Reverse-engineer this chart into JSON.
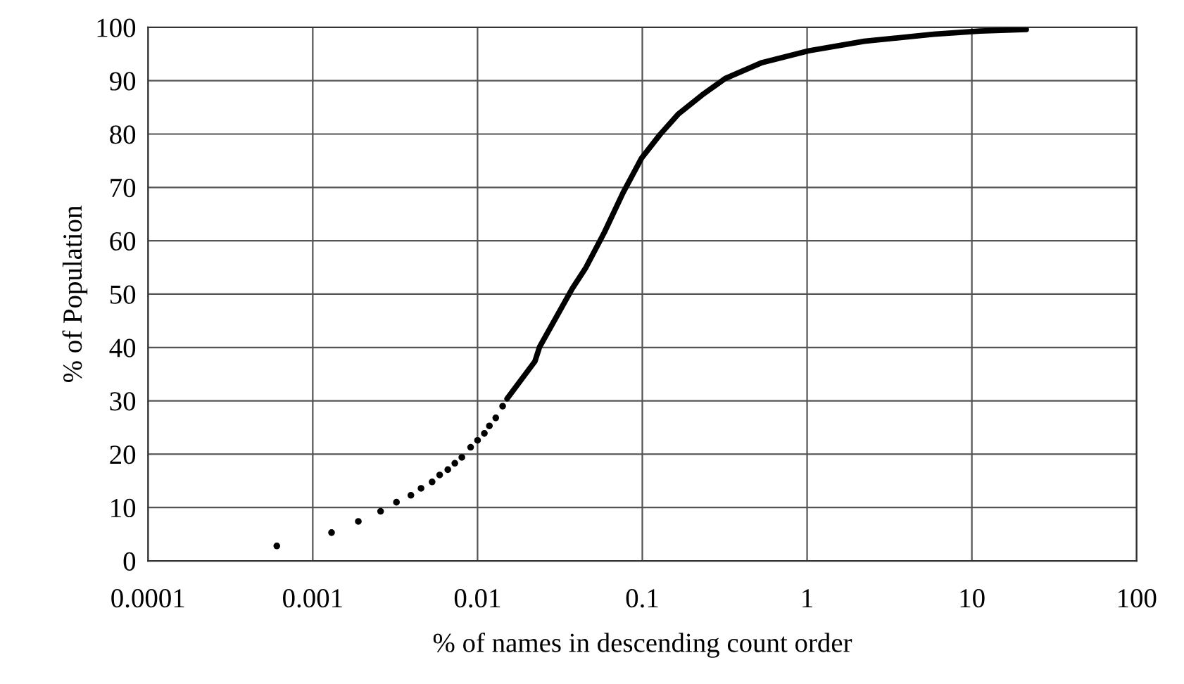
{
  "chart_data": {
    "type": "line",
    "xlabel": "% of names in descending count order",
    "ylabel": "% of Population",
    "log": "x",
    "xlim": [
      0.0001,
      100
    ],
    "xticks": [
      {
        "value": 0.0001,
        "label": "0.0001"
      },
      {
        "value": 0.001,
        "label": "0.001"
      },
      {
        "value": 0.01,
        "label": "0.01"
      },
      {
        "value": 0.1,
        "label": "0.1"
      },
      {
        "value": 1,
        "label": "1"
      },
      {
        "value": 10,
        "label": "10"
      },
      {
        "value": 100,
        "label": "100"
      }
    ],
    "ylim": [
      0,
      100
    ],
    "yticks": [
      0,
      10,
      20,
      30,
      40,
      50,
      60,
      70,
      80,
      90,
      100
    ],
    "grid": true,
    "series": [
      {
        "type": "scatter",
        "marker": "circle",
        "color": "#000000",
        "x": [
          0.000605,
          0.0013,
          0.00189,
          0.00258,
          0.00322,
          0.00394,
          0.00454,
          0.0053,
          0.00589,
          0.0066,
          0.00728,
          0.00803,
          0.00908,
          0.01,
          0.011,
          0.0118,
          0.0129,
          0.0142
        ],
        "values": [
          2.8,
          5.3,
          7.4,
          9.3,
          11.0,
          12.3,
          13.6,
          14.8,
          16.1,
          17.1,
          18.3,
          19.4,
          21.3,
          22.6,
          23.9,
          25.3,
          26.8,
          29.0
        ]
      },
      {
        "marker": "none",
        "line_style": "solid",
        "color": "#000000",
        "x": [
          0.0151,
          0.0223,
          0.0238,
          0.0375,
          0.0455,
          0.0589,
          0.0764,
          0.099,
          0.128,
          0.166,
          0.23,
          0.318,
          0.533,
          1.02,
          2.22,
          5.86,
          11.2,
          21.4
        ],
        "values": [
          30.4,
          37.4,
          40.1,
          51,
          55,
          61.6,
          69.0,
          75.5,
          79.9,
          83.8,
          87.3,
          90.4,
          93.4,
          95.6,
          97.4,
          98.7,
          99.3,
          99.6
        ]
      }
    ]
  }
}
